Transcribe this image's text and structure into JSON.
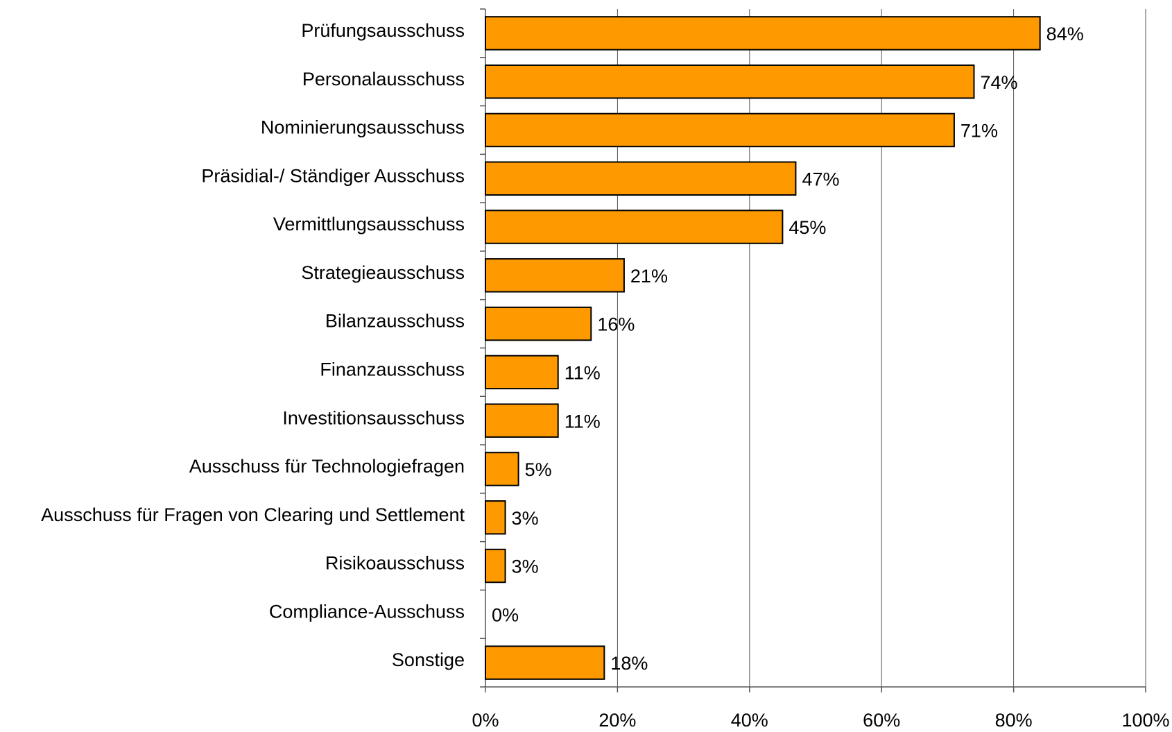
{
  "chart_data": {
    "type": "bar",
    "orientation": "horizontal",
    "categories": [
      "Prüfungsausschuss",
      "Personalausschuss",
      "Nominierungsausschuss",
      "Präsidial-/ Ständiger Ausschuss",
      "Vermittlungsausschuss",
      "Strategieausschuss",
      "Bilanzausschuss",
      "Finanzausschuss",
      "Investitionsausschuss",
      "Ausschuss für Technologiefragen",
      "Ausschuss für Fragen von Clearing und Settlement",
      "Risikoausschuss",
      "Compliance-Ausschuss",
      "Sonstige"
    ],
    "values": [
      84,
      74,
      71,
      47,
      45,
      21,
      16,
      11,
      11,
      5,
      3,
      3,
      0,
      18
    ],
    "value_labels": [
      "84%",
      "74%",
      "71%",
      "47%",
      "45%",
      "21%",
      "16%",
      "11%",
      "11%",
      "5%",
      "3%",
      "3%",
      "0%",
      "18%"
    ],
    "color": "#ff9900",
    "xlim": [
      0,
      100
    ],
    "xticks": [
      {
        "value": 0,
        "label": "0%"
      },
      {
        "value": 20,
        "label": "20%"
      },
      {
        "value": 40,
        "label": "40%"
      },
      {
        "value": 60,
        "label": "60%"
      },
      {
        "value": 80,
        "label": "80%"
      },
      {
        "value": 100,
        "label": "100%"
      }
    ],
    "grid": true
  }
}
